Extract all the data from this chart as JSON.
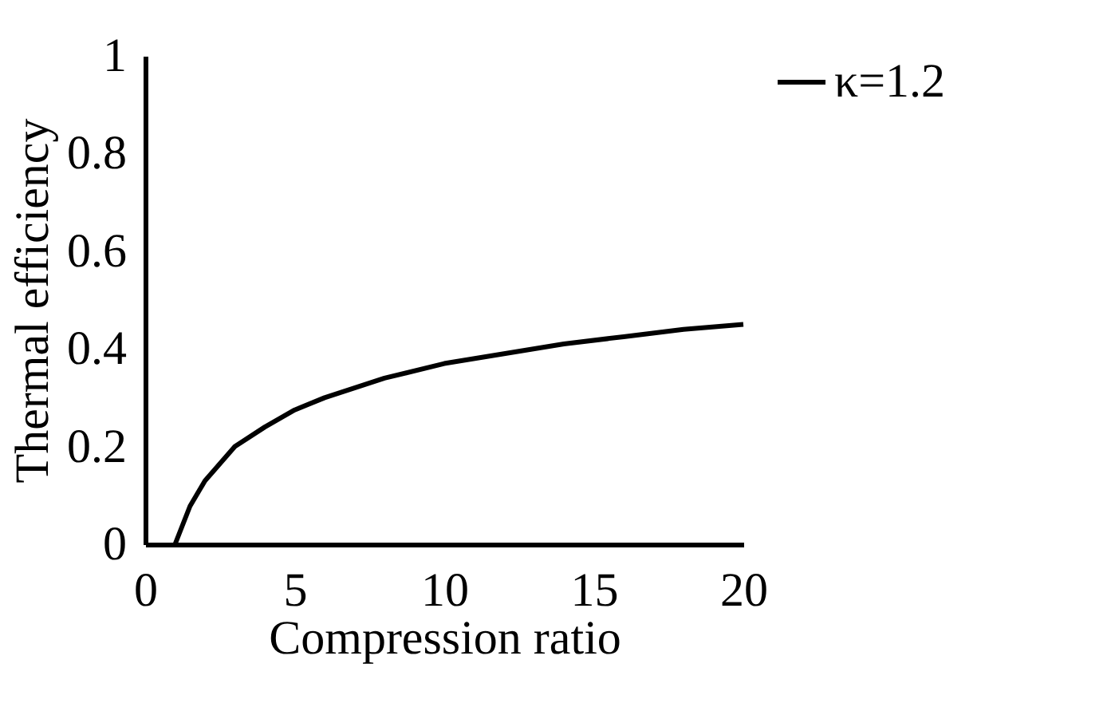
{
  "chart_data": {
    "type": "line",
    "xlabel": "Compression ratio",
    "ylabel": "Thermal efficiency",
    "x": [
      1,
      1.5,
      2,
      3,
      4,
      5,
      6,
      8,
      10,
      12,
      14,
      16,
      18,
      20
    ],
    "series": [
      {
        "name": "κ=1.2",
        "color": "#000000",
        "values": [
          0,
          0.078,
          0.13,
          0.2,
          0.24,
          0.275,
          0.3,
          0.34,
          0.37,
          0.39,
          0.41,
          0.425,
          0.44,
          0.45
        ]
      }
    ],
    "xlim": [
      0,
      20
    ],
    "xticks": [
      0,
      5,
      10,
      15,
      20
    ],
    "ylim": [
      0,
      1
    ],
    "yticks": [
      0,
      0.2,
      0.4,
      0.6,
      0.8,
      1
    ],
    "grid": false,
    "legend": "right",
    "marker": "none",
    "line_style": "solid"
  }
}
